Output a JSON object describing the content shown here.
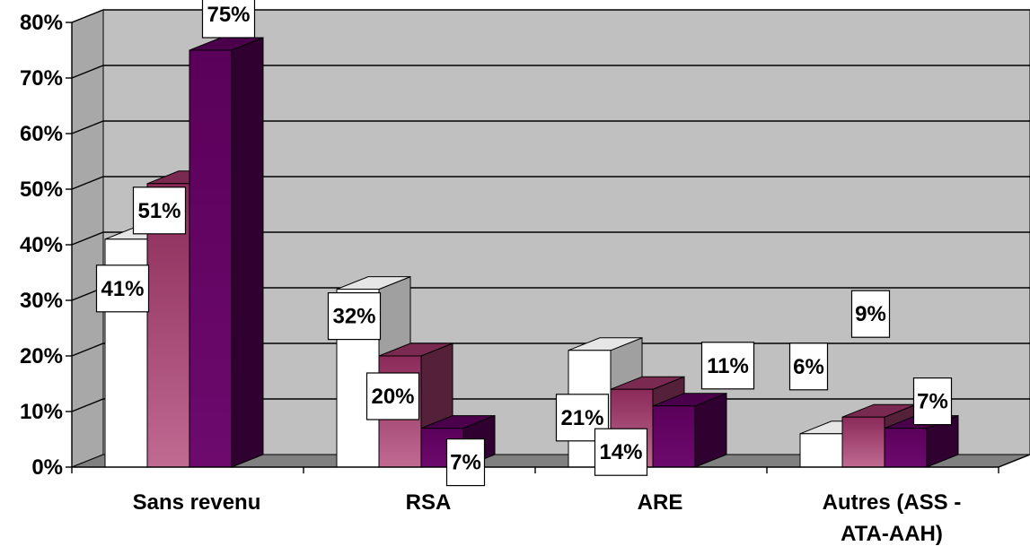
{
  "chart_data": {
    "type": "bar",
    "title": "",
    "xlabel": "",
    "ylabel": "",
    "ylim": [
      0,
      80
    ],
    "ytick_labels": [
      "0%",
      "10%",
      "20%",
      "30%",
      "40%",
      "50%",
      "60%",
      "70%",
      "80%"
    ],
    "categories": [
      {
        "line1": "Sans revenu",
        "line2": ""
      },
      {
        "line1": "RSA",
        "line2": ""
      },
      {
        "line1": "ARE",
        "line2": ""
      },
      {
        "line1": "Autres (ASS -",
        "line2": "ATA-AAH)"
      }
    ],
    "series": [
      {
        "color": "#ffffff",
        "values": [
          41,
          32,
          21,
          6
        ],
        "labels": [
          "41%",
          "32%",
          "21%",
          "6%"
        ]
      },
      {
        "color": "#a23a6a",
        "values": [
          51,
          20,
          14,
          9
        ],
        "labels": [
          "51%",
          "20%",
          "14%",
          "9%"
        ]
      },
      {
        "color": "#660066",
        "values": [
          75,
          7,
          11,
          7
        ],
        "labels": [
          "75%",
          "7%",
          "11%",
          "7%"
        ]
      }
    ],
    "grid": true,
    "legend": "none",
    "style": "3d-clustered-column",
    "wall_color": "#c0c0c0"
  }
}
